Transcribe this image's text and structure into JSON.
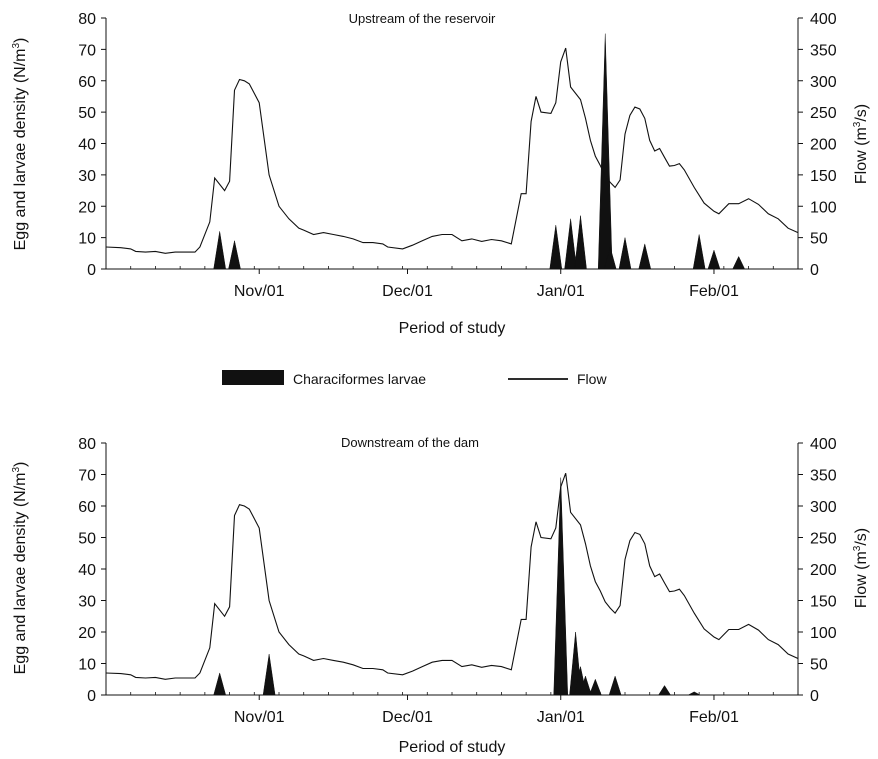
{
  "chart_data": [
    {
      "type": "area+line",
      "title": "Upstream of the reservoir",
      "xlabel": "Period of study",
      "ylabel_left": "Egg and larvae density (N/m",
      "ylabel_left_sup": "3",
      "ylabel_left_end": ")",
      "ylabel_right": "Flow (m",
      "ylabel_right_sup": "3",
      "ylabel_right_end": "/s)",
      "x_ticks": [
        {
          "label": "Nov/01",
          "day": 31
        },
        {
          "label": "Dec/01",
          "day": 61
        },
        {
          "label": "Jan/01",
          "day": 92
        },
        {
          "label": "Feb/01",
          "day": 123
        }
      ],
      "x_range_day": [
        0,
        140
      ],
      "ylim_left": [
        0,
        80
      ],
      "yticks_left": [
        0,
        10,
        20,
        30,
        40,
        50,
        60,
        70,
        80
      ],
      "ylim_right": [
        0,
        400
      ],
      "yticks_right": [
        0,
        50,
        100,
        150,
        200,
        250,
        300,
        350,
        400
      ],
      "series": [
        {
          "name": "Flow",
          "axis": "right",
          "points": [
            [
              0,
              35
            ],
            [
              3,
              34
            ],
            [
              5,
              32
            ],
            [
              6,
              28
            ],
            [
              8,
              27
            ],
            [
              10,
              28
            ],
            [
              12,
              25
            ],
            [
              14,
              27
            ],
            [
              16,
              27
            ],
            [
              18,
              27
            ],
            [
              19,
              35
            ],
            [
              21,
              75
            ],
            [
              22,
              145
            ],
            [
              24,
              125
            ],
            [
              25,
              140
            ],
            [
              26,
              285
            ],
            [
              27,
              302
            ],
            [
              28,
              300
            ],
            [
              29,
              295
            ],
            [
              31,
              265
            ],
            [
              33,
              150
            ],
            [
              35,
              100
            ],
            [
              37,
              80
            ],
            [
              39,
              65
            ],
            [
              40,
              62
            ],
            [
              42,
              55
            ],
            [
              44,
              58
            ],
            [
              46,
              55
            ],
            [
              48,
              52
            ],
            [
              50,
              48
            ],
            [
              52,
              42
            ],
            [
              54,
              42
            ],
            [
              56,
              40
            ],
            [
              57,
              35
            ],
            [
              60,
              32
            ],
            [
              62,
              38
            ],
            [
              64,
              45
            ],
            [
              66,
              52
            ],
            [
              68,
              55
            ],
            [
              70,
              55
            ],
            [
              72,
              45
            ],
            [
              74,
              48
            ],
            [
              76,
              44
            ],
            [
              78,
              47
            ],
            [
              80,
              45
            ],
            [
              82,
              40
            ],
            [
              84,
              120
            ],
            [
              85,
              120
            ],
            [
              86,
              235
            ],
            [
              87,
              275
            ],
            [
              88,
              250
            ],
            [
              90,
              248
            ],
            [
              91,
              265
            ],
            [
              92,
              330
            ],
            [
              93,
              352
            ],
            [
              94,
              290
            ],
            [
              96,
              270
            ],
            [
              97,
              240
            ],
            [
              98,
              205
            ],
            [
              99,
              180
            ],
            [
              100,
              165
            ],
            [
              101,
              148
            ],
            [
              102,
              138
            ],
            [
              103,
              130
            ],
            [
              104,
              142
            ],
            [
              105,
              215
            ],
            [
              106,
              245
            ],
            [
              107,
              258
            ],
            [
              108,
              255
            ],
            [
              109,
              240
            ],
            [
              110,
              205
            ],
            [
              111,
              188
            ],
            [
              112,
              192
            ],
            [
              113,
              178
            ],
            [
              114,
              164
            ],
            [
              115,
              165
            ],
            [
              116,
              168
            ],
            [
              117,
              158
            ],
            [
              119,
              130
            ],
            [
              121,
              105
            ],
            [
              123,
              92
            ],
            [
              124,
              88
            ],
            [
              126,
              104
            ],
            [
              128,
              104
            ],
            [
              130,
              112
            ],
            [
              132,
              103
            ],
            [
              134,
              88
            ],
            [
              136,
              80
            ],
            [
              138,
              65
            ],
            [
              140,
              58
            ]
          ]
        },
        {
          "name": "Characiformes larvae",
          "axis": "left",
          "spikes": [
            [
              23,
              12
            ],
            [
              26,
              9
            ],
            [
              91,
              14
            ],
            [
              94,
              16
            ],
            [
              96,
              17
            ],
            [
              101,
              75
            ],
            [
              102,
              7
            ],
            [
              105,
              10
            ],
            [
              109,
              8
            ],
            [
              120,
              11
            ],
            [
              123,
              6
            ],
            [
              128,
              4
            ]
          ]
        }
      ]
    },
    {
      "type": "area+line",
      "title": "Downstream of the dam",
      "xlabel": "Period of study",
      "ylabel_left": "Egg and larvae density (N/m",
      "ylabel_left_sup": "3",
      "ylabel_left_end": ")",
      "ylabel_right": "Flow (m",
      "ylabel_right_sup": "3",
      "ylabel_right_end": "/s)",
      "x_ticks": [
        {
          "label": "Nov/01",
          "day": 31
        },
        {
          "label": "Dec/01",
          "day": 61
        },
        {
          "label": "Jan/01",
          "day": 92
        },
        {
          "label": "Feb/01",
          "day": 123
        }
      ],
      "x_range_day": [
        0,
        140
      ],
      "ylim_left": [
        0,
        80
      ],
      "yticks_left": [
        0,
        10,
        20,
        30,
        40,
        50,
        60,
        70,
        80
      ],
      "ylim_right": [
        0,
        400
      ],
      "yticks_right": [
        0,
        50,
        100,
        150,
        200,
        250,
        300,
        350,
        400
      ],
      "series": [
        {
          "name": "Flow",
          "axis": "right",
          "points": [
            [
              0,
              35
            ],
            [
              3,
              34
            ],
            [
              5,
              32
            ],
            [
              6,
              28
            ],
            [
              8,
              27
            ],
            [
              10,
              28
            ],
            [
              12,
              25
            ],
            [
              14,
              27
            ],
            [
              16,
              27
            ],
            [
              18,
              27
            ],
            [
              19,
              35
            ],
            [
              21,
              75
            ],
            [
              22,
              145
            ],
            [
              24,
              125
            ],
            [
              25,
              140
            ],
            [
              26,
              285
            ],
            [
              27,
              302
            ],
            [
              28,
              300
            ],
            [
              29,
              295
            ],
            [
              31,
              265
            ],
            [
              33,
              150
            ],
            [
              35,
              100
            ],
            [
              37,
              80
            ],
            [
              39,
              65
            ],
            [
              40,
              62
            ],
            [
              42,
              55
            ],
            [
              44,
              58
            ],
            [
              46,
              55
            ],
            [
              48,
              52
            ],
            [
              50,
              48
            ],
            [
              52,
              42
            ],
            [
              54,
              42
            ],
            [
              56,
              40
            ],
            [
              57,
              35
            ],
            [
              60,
              32
            ],
            [
              62,
              38
            ],
            [
              64,
              45
            ],
            [
              66,
              52
            ],
            [
              68,
              55
            ],
            [
              70,
              55
            ],
            [
              72,
              45
            ],
            [
              74,
              48
            ],
            [
              76,
              44
            ],
            [
              78,
              47
            ],
            [
              80,
              45
            ],
            [
              82,
              40
            ],
            [
              84,
              120
            ],
            [
              85,
              120
            ],
            [
              86,
              235
            ],
            [
              87,
              275
            ],
            [
              88,
              250
            ],
            [
              90,
              248
            ],
            [
              91,
              265
            ],
            [
              92,
              330
            ],
            [
              93,
              352
            ],
            [
              94,
              290
            ],
            [
              96,
              270
            ],
            [
              97,
              240
            ],
            [
              98,
              205
            ],
            [
              99,
              180
            ],
            [
              100,
              165
            ],
            [
              101,
              148
            ],
            [
              102,
              138
            ],
            [
              103,
              130
            ],
            [
              104,
              142
            ],
            [
              105,
              215
            ],
            [
              106,
              245
            ],
            [
              107,
              258
            ],
            [
              108,
              255
            ],
            [
              109,
              240
            ],
            [
              110,
              205
            ],
            [
              111,
              188
            ],
            [
              112,
              192
            ],
            [
              113,
              178
            ],
            [
              114,
              164
            ],
            [
              115,
              165
            ],
            [
              116,
              168
            ],
            [
              117,
              158
            ],
            [
              119,
              130
            ],
            [
              121,
              105
            ],
            [
              123,
              92
            ],
            [
              124,
              88
            ],
            [
              126,
              104
            ],
            [
              128,
              104
            ],
            [
              130,
              112
            ],
            [
              132,
              103
            ],
            [
              134,
              88
            ],
            [
              136,
              80
            ],
            [
              138,
              65
            ],
            [
              140,
              58
            ]
          ]
        },
        {
          "name": "Characiformes larvae",
          "axis": "left",
          "spikes": [
            [
              23,
              7
            ],
            [
              33,
              13
            ],
            [
              92,
              69
            ],
            [
              95,
              20
            ],
            [
              96,
              9
            ],
            [
              97,
              6
            ],
            [
              99,
              5
            ],
            [
              103,
              6
            ],
            [
              113,
              3
            ],
            [
              119,
              1
            ]
          ]
        }
      ]
    }
  ],
  "legend": {
    "items": [
      "Characiformes larvae",
      "Flow"
    ],
    "colors": {
      "larvae": "#111111",
      "flow": "#111111"
    },
    "placement": "center, between panels"
  }
}
